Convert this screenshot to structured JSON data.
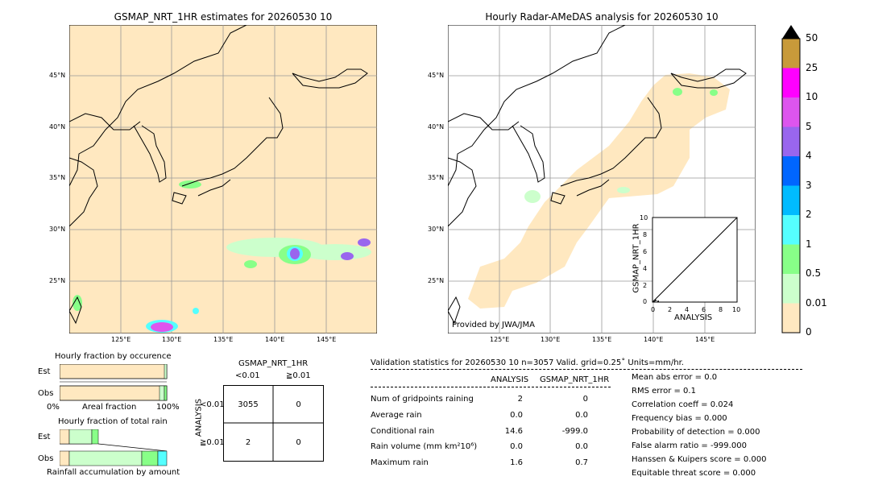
{
  "left_map": {
    "title": "GSMAP_NRT_1HR estimates for 20260530 10",
    "lat_ticks": [
      "45°N",
      "40°N",
      "35°N",
      "30°N",
      "25°N"
    ],
    "lon_ticks": [
      "125°E",
      "130°E",
      "135°E",
      "140°E",
      "145°E"
    ]
  },
  "right_map": {
    "title": "Hourly Radar-AMeDAS analysis for 20260530 10",
    "lat_ticks": [
      "45°N",
      "40°N",
      "35°N",
      "30°N",
      "25°N"
    ],
    "lon_ticks": [
      "125°E",
      "130°E",
      "135°E",
      "140°E",
      "145°E"
    ],
    "credit": "Provided by JWA/JMA"
  },
  "colorbar": {
    "labels": [
      "50",
      "25",
      "10",
      "5",
      "4",
      "3",
      "2",
      "1",
      "0.5",
      "0.01",
      "0"
    ],
    "colors": [
      "#c89a3a",
      "#ff00ff",
      "#dd55ee",
      "#9966ee",
      "#0066ff",
      "#00bbff",
      "#55ffff",
      "#88ff88",
      "#ccffcc",
      "#ffe8c0"
    ]
  },
  "scatter_inset": {
    "ylabel": "GSMAP_NRT_1HR",
    "xlabel": "ANALYSIS",
    "ticks": [
      "0",
      "2",
      "4",
      "6",
      "8",
      "10"
    ]
  },
  "fraction_occurrence": {
    "title": "Hourly fraction by occurence",
    "rows": [
      "Est",
      "Obs"
    ],
    "axis_left": "0%",
    "axis_mid": "Areal fraction",
    "axis_right": "100%"
  },
  "fraction_total": {
    "title": "Hourly fraction of total rain",
    "rows": [
      "Est",
      "Obs"
    ],
    "footer": "Rainfall accumulation by amount"
  },
  "contingency": {
    "title": "GSMAP_NRT_1HR",
    "col_headers": [
      "<0.01",
      "≧0.01"
    ],
    "side_label": "ANALYSIS",
    "row_headers": [
      "<0.01",
      "≧0.01"
    ],
    "cells": [
      [
        "3055",
        "0"
      ],
      [
        "2",
        "0"
      ]
    ]
  },
  "validation": {
    "header": "Validation statistics for 20260530 10  n=3057 Valid. grid=0.25˚ Units=mm/hr.",
    "col_analysis": "ANALYSIS",
    "col_gsmap": "GSMAP_NRT_1HR",
    "rows": [
      {
        "label": "Num of gridpoints raining",
        "analysis": "2",
        "gsmap": "0"
      },
      {
        "label": "Average rain",
        "analysis": "0.0",
        "gsmap": "0.0"
      },
      {
        "label": "Conditional rain",
        "analysis": "14.6",
        "gsmap": "-999.0"
      },
      {
        "label": "Rain volume (mm km²10⁶)",
        "analysis": "0.0",
        "gsmap": "0.0"
      },
      {
        "label": "Maximum rain",
        "analysis": "1.6",
        "gsmap": "0.7"
      }
    ],
    "scores": [
      "Mean abs error =    0.0",
      "RMS error =    0.1",
      "Correlation coeff =  0.024",
      "Frequency bias =  0.000",
      "Probability of detection =  0.000",
      "False alarm ratio = -999.000",
      "Hanssen & Kuipers score =  0.000",
      "Equitable threat score =  0.000"
    ]
  },
  "chart_data": {
    "type": "table",
    "contingency_table": {
      "rows": [
        "<0.01",
        "≧0.01"
      ],
      "cols": [
        "<0.01",
        "≧0.01"
      ],
      "values": [
        [
          3055,
          0
        ],
        [
          2,
          0
        ]
      ]
    },
    "statistics": {
      "n": 3057,
      "num_gridpoints_raining": {
        "analysis": 2,
        "gsmap": 0
      },
      "average_rain": {
        "analysis": 0.0,
        "gsmap": 0.0
      },
      "conditional_rain": {
        "analysis": 14.6,
        "gsmap": -999.0
      },
      "rain_volume": {
        "analysis": 0.0,
        "gsmap": 0.0
      },
      "maximum_rain": {
        "analysis": 1.6,
        "gsmap": 0.7
      },
      "mean_abs_error": 0.0,
      "rms_error": 0.1,
      "correlation_coeff": 0.024,
      "frequency_bias": 0.0,
      "probability_of_detection": 0.0,
      "false_alarm_ratio": -999.0,
      "hanssen_kuipers_score": 0.0,
      "equitable_threat_score": 0.0
    },
    "colorbar_levels": [
      0,
      0.01,
      0.5,
      1,
      2,
      3,
      4,
      5,
      10,
      25,
      50
    ]
  }
}
